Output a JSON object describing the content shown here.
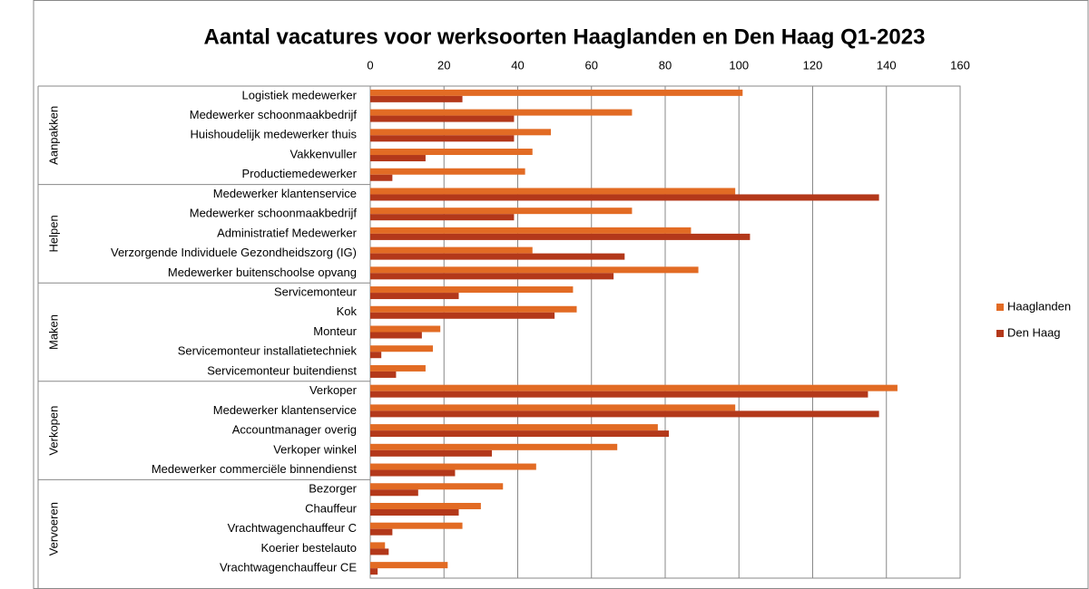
{
  "chart_data": {
    "type": "bar",
    "orientation": "horizontal",
    "title": "Aantal vacatures voor werksoorten Haaglanden en Den Haag Q1-2023",
    "groups": [
      {
        "name": "Aanpakken",
        "categories": [
          "Logistiek medewerker",
          "Medewerker schoonmaakbedrijf",
          "Huishoudelijk medewerker thuis",
          "Vakkenvuller",
          "Productiemedewerker"
        ]
      },
      {
        "name": "Helpen",
        "categories": [
          "Medewerker klantenservice",
          "Medewerker schoonmaakbedrijf",
          "Administratief Medewerker",
          "Verzorgende Individuele Gezondheidszorg (IG)",
          "Medewerker buitenschoolse opvang"
        ]
      },
      {
        "name": "Maken",
        "categories": [
          "Servicemonteur",
          "Kok",
          "Monteur",
          "Servicemonteur installatietechniek",
          "Servicemonteur buitendienst"
        ]
      },
      {
        "name": "Verkopen",
        "categories": [
          "Verkoper",
          "Medewerker klantenservice",
          "Accountmanager overig",
          "Verkoper winkel",
          "Medewerker commerciële binnendienst"
        ]
      },
      {
        "name": "Vervoeren",
        "categories": [
          "Bezorger",
          "Chauffeur",
          "Vrachtwagenchauffeur C",
          "Koerier bestelauto",
          "Vrachtwagenchauffeur CE"
        ]
      }
    ],
    "series": [
      {
        "name": "Haaglanden",
        "color": "#e26b24",
        "values": [
          101,
          71,
          49,
          44,
          42,
          99,
          71,
          87,
          44,
          89,
          55,
          56,
          19,
          17,
          15,
          143,
          99,
          78,
          67,
          45,
          36,
          30,
          25,
          4,
          21
        ]
      },
      {
        "name": "Den Haag",
        "color": "#b3381a",
        "values": [
          25,
          39,
          39,
          15,
          6,
          138,
          39,
          103,
          69,
          66,
          24,
          50,
          14,
          3,
          7,
          135,
          138,
          81,
          33,
          23,
          13,
          24,
          6,
          5,
          2
        ]
      }
    ],
    "xlim": [
      0,
      160
    ],
    "xticks": [
      0,
      20,
      40,
      60,
      80,
      100,
      120,
      140,
      160
    ],
    "grid": true,
    "legend": "right"
  }
}
